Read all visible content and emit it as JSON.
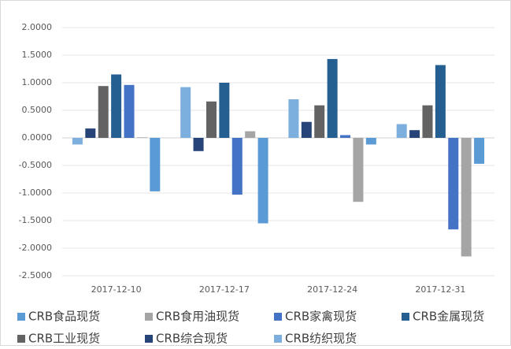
{
  "chart_data": {
    "type": "bar",
    "categories": [
      "2017-12-10",
      "2017-12-17",
      "2017-12-24",
      "2017-12-31"
    ],
    "series": [
      {
        "name": "CRB食品现货",
        "color": "#5b9bd5",
        "values": [
          -0.97,
          -1.55,
          -0.12,
          -0.47
        ]
      },
      {
        "name": "CRB食用油现货",
        "color": "#a5a5a5",
        "values": [
          0.01,
          0.12,
          -1.16,
          -2.15
        ]
      },
      {
        "name": "CRB家禽现货",
        "color": "#4472c4",
        "values": [
          0.96,
          -1.03,
          0.05,
          -1.66
        ]
      },
      {
        "name": "CRB金属现货",
        "color": "#255e91",
        "values": [
          1.15,
          1.0,
          1.43,
          1.32
        ]
      },
      {
        "name": "CRB工业现货",
        "color": "#636363",
        "values": [
          0.94,
          0.66,
          0.59,
          0.59
        ]
      },
      {
        "name": "CRB综合现货",
        "color": "#264478",
        "values": [
          0.17,
          -0.24,
          0.29,
          0.14
        ]
      },
      {
        "name": "CRB纺织现货",
        "color": "#7cafdd",
        "values": [
          -0.12,
          0.92,
          0.7,
          0.25
        ]
      }
    ],
    "ylim": [
      -2.5,
      2.0
    ],
    "yticks": [
      {
        "value": -2.5,
        "label": "-2.5000"
      },
      {
        "value": -2.0,
        "label": "-2.0000"
      },
      {
        "value": -1.5,
        "label": "-1.5000"
      },
      {
        "value": -1.0,
        "label": "-1.0000"
      },
      {
        "value": -0.5,
        "label": "-0.5000"
      },
      {
        "value": 0,
        "label": "0.0000"
      },
      {
        "value": 0.5,
        "label": "0.5000"
      },
      {
        "value": 1.0,
        "label": "1.0000"
      },
      {
        "value": 1.5,
        "label": "1.5000"
      },
      {
        "value": 2.0,
        "label": "2.0000"
      }
    ],
    "grid": true,
    "bar_order": "reversed",
    "legend": "bottom"
  }
}
